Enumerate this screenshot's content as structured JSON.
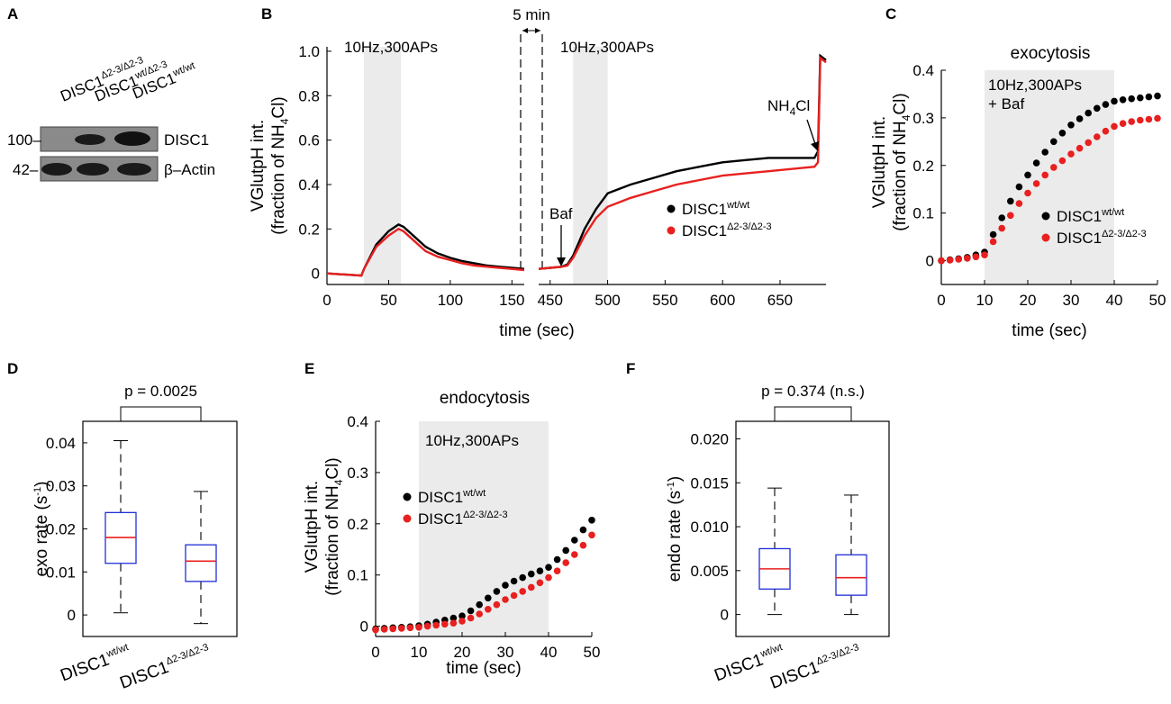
{
  "panels": {
    "A": {
      "letter": "A",
      "lanes": [
        "DISC1",
        "DISC1",
        "DISC1"
      ],
      "lane_sups": [
        "Δ2-3/Δ2-3",
        "wt/Δ2-3",
        "wt/wt"
      ],
      "markers": [
        "100–",
        "42–"
      ],
      "bands": [
        "DISC1",
        "β–Actin"
      ]
    },
    "B": {
      "letter": "B"
    },
    "C": {
      "letter": "C"
    },
    "D": {
      "letter": "D"
    },
    "E": {
      "letter": "E"
    },
    "F": {
      "letter": "F"
    }
  },
  "colors": {
    "wt": "#000000",
    "mut": "#e8201f",
    "stim": "#ebebeb",
    "box": "#1f2fd6",
    "median": "#e8201f"
  },
  "chart_data": [
    {
      "id": "B",
      "type": "line",
      "title": "",
      "ylabel": "VGlutpH int.",
      "ylabel2": "(fraction of NH",
      "ylabel2_sub": "4",
      "ylabel2_end": "Cl)",
      "xlabel": "time (sec)",
      "ylim": [
        -0.05,
        1.02
      ],
      "yticks": [
        0,
        0.2,
        0.4,
        0.6,
        0.8,
        1.0
      ],
      "ytick_labels": [
        "0",
        "0.2",
        "0.4",
        "0.6",
        "0.8",
        "1.0"
      ],
      "segment1": {
        "xlim": [
          0,
          160
        ],
        "xticks": [
          0,
          50,
          100,
          150
        ],
        "xtick_labels": [
          "0",
          "50",
          "100",
          "150"
        ]
      },
      "segment2": {
        "xlim": [
          440,
          690
        ],
        "xticks": [
          450,
          500,
          550,
          600,
          650
        ],
        "xtick_labels": [
          "450",
          "500",
          "550",
          "600",
          "650"
        ]
      },
      "break_label": "5 min",
      "stim1": {
        "x": [
          30,
          60
        ],
        "label": "10Hz,300APs"
      },
      "stim2": {
        "x": [
          470,
          500
        ],
        "label": "10Hz,300APs"
      },
      "annotations": {
        "baf": "Baf",
        "nh4cl": "NH",
        "nh4cl_sub": "4",
        "nh4cl_end": "Cl"
      },
      "legend": {
        "wt": "DISC1",
        "wt_sup": "wt/wt",
        "mut": "DISC1",
        "mut_sup": "Δ2-3/Δ2-3"
      },
      "series": [
        {
          "name": "DISC1 wt/wt",
          "color": "#000000",
          "x": [
            0,
            28,
            30,
            40,
            50,
            58,
            62,
            70,
            80,
            90,
            100,
            110,
            120,
            130,
            140,
            150,
            160,
            440,
            450,
            460,
            465,
            470,
            475,
            480,
            490,
            500,
            510,
            520,
            540,
            560,
            580,
            600,
            620,
            640,
            660,
            680,
            683,
            685,
            690
          ],
          "y": [
            0,
            -0.01,
            0.02,
            0.13,
            0.19,
            0.22,
            0.21,
            0.17,
            0.12,
            0.09,
            0.07,
            0.055,
            0.045,
            0.035,
            0.03,
            0.025,
            0.02,
            0.02,
            0.025,
            0.03,
            0.04,
            0.08,
            0.14,
            0.2,
            0.29,
            0.36,
            0.38,
            0.4,
            0.43,
            0.46,
            0.48,
            0.5,
            0.51,
            0.52,
            0.52,
            0.52,
            0.55,
            0.98,
            0.96
          ]
        },
        {
          "name": "DISC1 Δ2-3/Δ2-3",
          "color": "#e8201f",
          "x": [
            0,
            28,
            30,
            40,
            50,
            58,
            62,
            70,
            80,
            90,
            100,
            110,
            120,
            130,
            140,
            150,
            160,
            440,
            450,
            460,
            465,
            470,
            475,
            480,
            490,
            500,
            510,
            520,
            540,
            560,
            580,
            600,
            620,
            640,
            660,
            680,
            683,
            685,
            690
          ],
          "y": [
            0,
            -0.01,
            0.02,
            0.12,
            0.17,
            0.2,
            0.19,
            0.15,
            0.1,
            0.075,
            0.06,
            0.045,
            0.035,
            0.03,
            0.025,
            0.02,
            0.015,
            0.02,
            0.025,
            0.03,
            0.035,
            0.07,
            0.12,
            0.17,
            0.25,
            0.3,
            0.32,
            0.34,
            0.37,
            0.4,
            0.42,
            0.44,
            0.45,
            0.46,
            0.47,
            0.48,
            0.5,
            0.97,
            0.95
          ]
        }
      ]
    },
    {
      "id": "C",
      "type": "scatter",
      "title": "exocytosis",
      "ylabel": "VGlutpH int.",
      "ylabel2": "(fraction of NH",
      "ylabel2_sub": "4",
      "ylabel2_end": "Cl)",
      "xlabel": "time (sec)",
      "xlim": [
        0,
        50
      ],
      "ylim": [
        -0.05,
        0.4
      ],
      "xticks": [
        0,
        10,
        20,
        30,
        40,
        50
      ],
      "xtick_labels": [
        "0",
        "10",
        "20",
        "30",
        "40",
        "50"
      ],
      "yticks": [
        0,
        0.1,
        0.2,
        0.3,
        0.4
      ],
      "ytick_labels": [
        "0",
        "0.1",
        "0.2",
        "0.3",
        "0.4"
      ],
      "stim": {
        "x": [
          10,
          40
        ],
        "label": "10Hz,300APs",
        "label2": "+ Baf"
      },
      "legend": {
        "wt": "DISC1",
        "wt_sup": "wt/wt",
        "mut": "DISC1",
        "mut_sup": "Δ2-3/Δ2-3"
      },
      "series": [
        {
          "name": "DISC1 wt/wt",
          "color": "#000000",
          "x": [
            0,
            2,
            4,
            6,
            8,
            10,
            12,
            14,
            16,
            18,
            20,
            22,
            24,
            26,
            28,
            30,
            32,
            34,
            36,
            38,
            40,
            42,
            44,
            46,
            48,
            50
          ],
          "y": [
            0,
            0.002,
            0.004,
            0.007,
            0.012,
            0.018,
            0.055,
            0.09,
            0.125,
            0.155,
            0.18,
            0.205,
            0.228,
            0.25,
            0.268,
            0.285,
            0.298,
            0.31,
            0.32,
            0.328,
            0.335,
            0.338,
            0.34,
            0.342,
            0.344,
            0.346
          ]
        },
        {
          "name": "DISC1 Δ2-3/Δ2-3",
          "color": "#e8201f",
          "x": [
            0,
            2,
            4,
            6,
            8,
            10,
            12,
            14,
            16,
            18,
            20,
            22,
            24,
            26,
            28,
            30,
            32,
            34,
            36,
            38,
            40,
            42,
            44,
            46,
            48,
            50
          ],
          "y": [
            0,
            0.001,
            0.003,
            0.005,
            0.008,
            0.012,
            0.04,
            0.068,
            0.095,
            0.12,
            0.142,
            0.162,
            0.18,
            0.196,
            0.21,
            0.224,
            0.236,
            0.248,
            0.26,
            0.272,
            0.282,
            0.288,
            0.292,
            0.295,
            0.297,
            0.299
          ]
        }
      ]
    },
    {
      "id": "D",
      "type": "box",
      "ylabel": "exo rate (s",
      "ylabel_sup": "-1",
      "ylabel_end": ")",
      "ylim": [
        -0.005,
        0.045
      ],
      "yticks": [
        0,
        0.01,
        0.02,
        0.03,
        0.04
      ],
      "ytick_labels": [
        "0",
        "0.01",
        "0.02",
        "0.03",
        "0.04"
      ],
      "p_label": "p = 0.0025",
      "categories": [
        "DISC1",
        "DISC1"
      ],
      "category_sups": [
        "wt/wt",
        "Δ2-3/Δ2-3"
      ],
      "boxes": [
        {
          "min": 0.0005,
          "q1": 0.012,
          "median": 0.018,
          "q3": 0.0238,
          "max": 0.0405
        },
        {
          "min": -0.002,
          "q1": 0.0078,
          "median": 0.0125,
          "q3": 0.0163,
          "max": 0.0287
        }
      ]
    },
    {
      "id": "E",
      "type": "scatter",
      "title": "endocytosis",
      "ylabel": "VGlutpH int.",
      "ylabel2": "(fraction of NH",
      "ylabel2_sub": "4",
      "ylabel2_end": "Cl)",
      "xlabel": "time (sec)",
      "xlim": [
        0,
        50
      ],
      "ylim": [
        -0.02,
        0.4
      ],
      "xticks": [
        0,
        10,
        20,
        30,
        40,
        50
      ],
      "xtick_labels": [
        "0",
        "10",
        "20",
        "30",
        "40",
        "50"
      ],
      "yticks": [
        0,
        0.1,
        0.2,
        0.3,
        0.4
      ],
      "ytick_labels": [
        "0",
        "0.1",
        "0.2",
        "0.3",
        "0.4"
      ],
      "stim": {
        "x": [
          10,
          40
        ],
        "label": "10Hz,300APs"
      },
      "legend": {
        "wt": "DISC1",
        "wt_sup": "wt/wt",
        "mut": "DISC1",
        "mut_sup": "Δ2-3/Δ2-3"
      },
      "series": [
        {
          "name": "DISC1 wt/wt",
          "color": "#000000",
          "x": [
            0,
            2,
            4,
            6,
            8,
            10,
            12,
            14,
            16,
            18,
            20,
            22,
            24,
            26,
            28,
            30,
            32,
            34,
            36,
            38,
            40,
            42,
            44,
            46,
            48,
            50
          ],
          "y": [
            -0.005,
            -0.004,
            -0.003,
            -0.002,
            -0.001,
            0.001,
            0.004,
            0.008,
            0.012,
            0.016,
            0.02,
            0.03,
            0.042,
            0.055,
            0.068,
            0.08,
            0.088,
            0.095,
            0.102,
            0.108,
            0.115,
            0.13,
            0.148,
            0.168,
            0.188,
            0.207
          ]
        },
        {
          "name": "DISC1 Δ2-3/Δ2-3",
          "color": "#e8201f",
          "x": [
            0,
            2,
            4,
            6,
            8,
            10,
            12,
            14,
            16,
            18,
            20,
            22,
            24,
            26,
            28,
            30,
            32,
            34,
            36,
            38,
            40,
            42,
            44,
            46,
            48,
            50
          ],
          "y": [
            -0.007,
            -0.006,
            -0.005,
            -0.004,
            -0.003,
            -0.002,
            0,
            0.002,
            0.004,
            0.006,
            0.01,
            0.016,
            0.024,
            0.033,
            0.042,
            0.052,
            0.06,
            0.068,
            0.076,
            0.085,
            0.095,
            0.108,
            0.124,
            0.14,
            0.158,
            0.178
          ]
        }
      ]
    },
    {
      "id": "F",
      "type": "box",
      "ylabel": "endo rate (s",
      "ylabel_sup": "-1",
      "ylabel_end": ")",
      "ylim": [
        -0.0025,
        0.022
      ],
      "yticks": [
        0,
        0.005,
        0.01,
        0.015,
        0.02
      ],
      "ytick_labels": [
        "0",
        "0.005",
        "0.010",
        "0.015",
        "0.020"
      ],
      "p_label": "p = 0.374 (n.s.)",
      "categories": [
        "DISC1",
        "DISC1"
      ],
      "category_sups": [
        "wt/wt",
        "Δ2-3/Δ2-3"
      ],
      "boxes": [
        {
          "min": 0.0,
          "q1": 0.0029,
          "median": 0.0052,
          "q3": 0.0075,
          "max": 0.0144
        },
        {
          "min": 0.0,
          "q1": 0.0022,
          "median": 0.0042,
          "q3": 0.0068,
          "max": 0.0136
        }
      ]
    }
  ]
}
